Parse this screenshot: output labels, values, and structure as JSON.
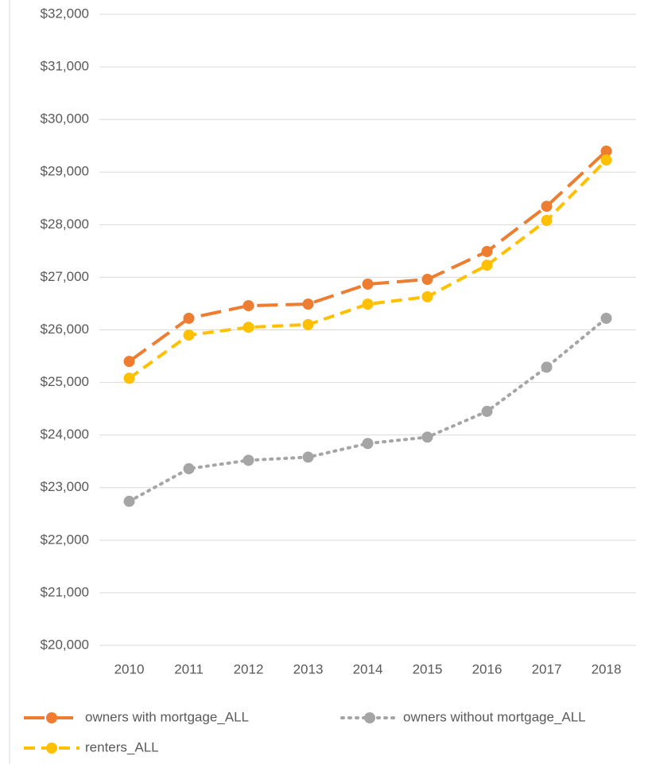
{
  "chart_data": {
    "type": "line",
    "categories": [
      "2010",
      "2011",
      "2012",
      "2013",
      "2014",
      "2015",
      "2016",
      "2017",
      "2018"
    ],
    "series": [
      {
        "name": "owners with mortgage_ALL",
        "color": "#ed7d31",
        "line_style": "long-dash",
        "values": [
          25400,
          26220,
          26460,
          26490,
          26870,
          26960,
          27490,
          28350,
          29400
        ]
      },
      {
        "name": "owners without mortgage_ALL",
        "color": "#a5a5a5",
        "line_style": "dotted",
        "values": [
          22740,
          23360,
          23520,
          23580,
          23840,
          23960,
          24450,
          25290,
          26220
        ]
      },
      {
        "name": "renters_ALL",
        "color": "#ffc000",
        "line_style": "dashed",
        "values": [
          25080,
          25900,
          26050,
          26100,
          26490,
          26630,
          27230,
          28080,
          29230
        ]
      }
    ],
    "ylim": [
      20000,
      32000
    ],
    "yticks": [
      {
        "value": 20000,
        "label": "$20,000"
      },
      {
        "value": 21000,
        "label": "$21,000"
      },
      {
        "value": 22000,
        "label": "$22,000"
      },
      {
        "value": 23000,
        "label": "$23,000"
      },
      {
        "value": 24000,
        "label": "$24,000"
      },
      {
        "value": 25000,
        "label": "$25,000"
      },
      {
        "value": 26000,
        "label": "$26,000"
      },
      {
        "value": 27000,
        "label": "$27,000"
      },
      {
        "value": 28000,
        "label": "$28,000"
      },
      {
        "value": 29000,
        "label": "$29,000"
      },
      {
        "value": 30000,
        "label": "$30,000"
      },
      {
        "value": 31000,
        "label": "$31,000"
      },
      {
        "value": 32000,
        "label": "$32,000"
      }
    ],
    "grid": true,
    "legend": "bottom"
  }
}
